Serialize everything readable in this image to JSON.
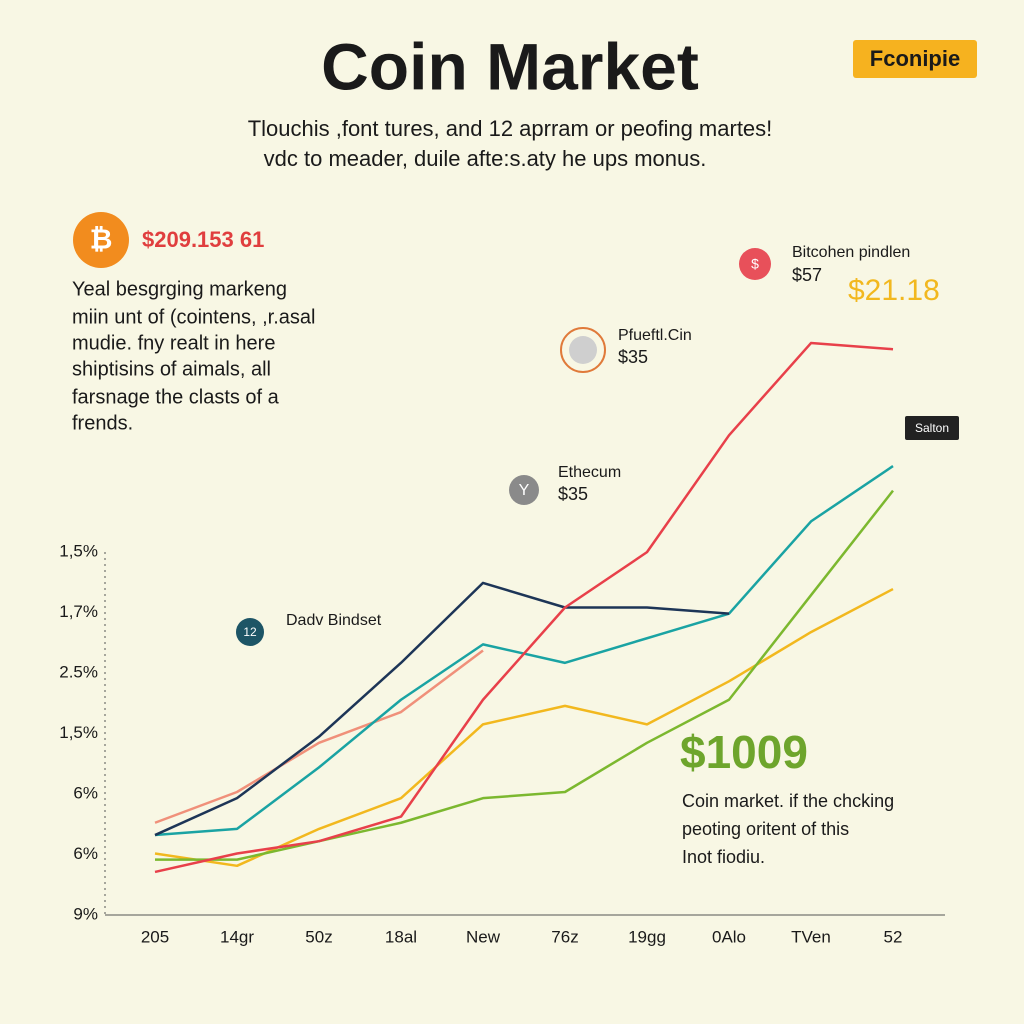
{
  "chart_data": {
    "type": "line",
    "title": "Coin Market",
    "logo": "Fconipie",
    "subtitle": [
      "Tlouchis ,font tures, and 12 aprram or peofing martes!",
      "vdc to meader, duile afte:s.aty he ups monus."
    ],
    "bitcoin_price": "$209.153 61",
    "intro": [
      "Yeal besgrging markeng",
      "miin unt of (cointens, ,r.asal",
      "mudie. fny realt in here",
      "shiptisins of aimals, all",
      "farsnage the clasts of a",
      "frends."
    ],
    "callouts": [
      {
        "icon": "$",
        "name": "Bitcohen pindlen",
        "price": "$57",
        "extra": "$21.18"
      },
      {
        "name": "Pfueftl.Cin",
        "price": "$35"
      },
      {
        "icon": "Y",
        "name": "Ethecum",
        "price": "$35"
      },
      {
        "icon": "12",
        "name": "Dadv Bindset"
      }
    ],
    "flag": "Salton",
    "highlight": "$1009",
    "note": [
      "Coin market. if the chcking",
      "peoting oritent of this",
      "Inot fiodiu."
    ],
    "y_axis_labels": [
      "9%",
      "6%",
      "6%",
      "1,5%",
      "2.5%",
      "1,7%",
      "1,5%"
    ],
    "categories": [
      "205",
      "14gr",
      "50z",
      "18al",
      "New",
      "76z",
      "19gg",
      "0Alo",
      "TVen",
      "52"
    ],
    "ylim": [
      0,
      100
    ],
    "series": [
      {
        "color": "#f0907a",
        "values": [
          15,
          20,
          28,
          33,
          43,
          null,
          null,
          null,
          null,
          null
        ]
      },
      {
        "color": "#f2b81e",
        "values": [
          10,
          8,
          14,
          19,
          31,
          34,
          31,
          38,
          46,
          53
        ]
      },
      {
        "color": "#7cb82f",
        "values": [
          9,
          9,
          12,
          15,
          19,
          20,
          28,
          35,
          52,
          69
        ]
      },
      {
        "color": "#1aa3a3",
        "values": [
          13,
          14,
          24,
          35,
          44,
          41,
          45,
          49,
          64,
          73
        ]
      },
      {
        "color": "#1d3557",
        "values": [
          13,
          19,
          29,
          41,
          54,
          50,
          50,
          49,
          null,
          null
        ]
      },
      {
        "color": "#e8404a",
        "values": [
          7,
          10,
          12,
          16,
          35,
          50,
          59,
          78,
          93,
          92
        ]
      }
    ]
  }
}
